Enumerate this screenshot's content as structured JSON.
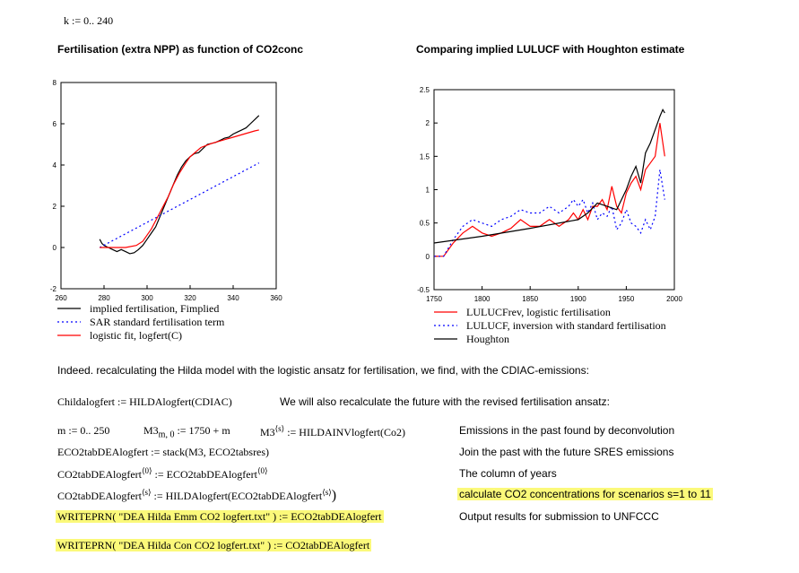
{
  "range_def": "k := 0.. 240",
  "chart_data": [
    {
      "type": "line",
      "title": "Fertilisation (extra NPP) as function of CO2conc",
      "xlim": [
        260,
        360
      ],
      "ylim": [
        -2,
        8
      ],
      "x_ticks": [
        "260",
        "280",
        "300",
        "320",
        "340",
        "360"
      ],
      "y_ticks": [
        "-2",
        "0",
        "2",
        "4",
        "6",
        "8"
      ],
      "grid": false,
      "legend_position": "bottom",
      "series": [
        {
          "name": "implied fertilisation, Fimplied",
          "color": "#000000",
          "style": "solid",
          "x": [
            278,
            279,
            280,
            282,
            284,
            286,
            288,
            290,
            292,
            294,
            296,
            298,
            300,
            302,
            304,
            306,
            308,
            310,
            312,
            314,
            316,
            318,
            320,
            322,
            324,
            326,
            328,
            330,
            332,
            334,
            336,
            338,
            340,
            342,
            344,
            346,
            348,
            350,
            352
          ],
          "y": [
            0.4,
            0.2,
            0.1,
            0.0,
            -0.1,
            -0.2,
            -0.1,
            -0.2,
            -0.3,
            -0.25,
            -0.1,
            0.1,
            0.4,
            0.7,
            1.0,
            1.5,
            2.0,
            2.5,
            3.0,
            3.5,
            3.9,
            4.2,
            4.4,
            4.55,
            4.6,
            4.8,
            5.0,
            5.05,
            5.1,
            5.2,
            5.3,
            5.35,
            5.5,
            5.6,
            5.7,
            5.8,
            6.0,
            6.2,
            6.4
          ]
        },
        {
          "name": "SAR standard fertilisation term",
          "color": "#0000ff",
          "style": "dotted",
          "x": [
            278,
            352
          ],
          "y": [
            0.0,
            4.1
          ]
        },
        {
          "name": "logistic fit, logfert(C)",
          "color": "#ff0000",
          "style": "solid",
          "x": [
            278,
            285,
            290,
            295,
            298,
            300,
            302,
            305,
            308,
            310,
            312,
            315,
            318,
            320,
            325,
            330,
            335,
            340,
            345,
            350,
            352
          ],
          "y": [
            0.0,
            0.0,
            0.0,
            0.1,
            0.3,
            0.6,
            0.9,
            1.5,
            2.1,
            2.5,
            3.0,
            3.6,
            4.1,
            4.4,
            4.85,
            5.05,
            5.2,
            5.35,
            5.5,
            5.65,
            5.7
          ]
        }
      ]
    },
    {
      "type": "line",
      "title": "Comparing implied LULUCF with Houghton estimate",
      "xlim": [
        1750,
        2000
      ],
      "ylim": [
        -0.5,
        2.5
      ],
      "x_ticks": [
        "1750",
        "1800",
        "1850",
        "1900",
        "1950",
        "2000"
      ],
      "y_ticks": [
        "-0.5",
        "0",
        "0.5",
        "1",
        "1.5",
        "2",
        "2.5"
      ],
      "grid": false,
      "legend_position": "bottom",
      "series": [
        {
          "name": "LULUCFrev, logistic fertilisation",
          "color": "#ff0000",
          "style": "solid",
          "x": [
            1750,
            1760,
            1770,
            1780,
            1790,
            1800,
            1810,
            1820,
            1830,
            1840,
            1850,
            1860,
            1870,
            1880,
            1890,
            1895,
            1900,
            1905,
            1910,
            1915,
            1920,
            1925,
            1930,
            1935,
            1940,
            1945,
            1950,
            1955,
            1960,
            1965,
            1970,
            1975,
            1980,
            1985,
            1990
          ],
          "y": [
            0.0,
            0.0,
            0.2,
            0.35,
            0.45,
            0.35,
            0.3,
            0.35,
            0.42,
            0.55,
            0.45,
            0.45,
            0.55,
            0.45,
            0.55,
            0.65,
            0.55,
            0.7,
            0.55,
            0.75,
            0.75,
            0.85,
            0.7,
            1.05,
            0.75,
            0.65,
            0.95,
            1.1,
            1.2,
            1.0,
            1.3,
            1.4,
            1.5,
            2.0,
            1.5
          ]
        },
        {
          "name": "LULUCF, inversion with standard fertilisation",
          "color": "#0000ff",
          "style": "dotted",
          "x": [
            1750,
            1760,
            1770,
            1780,
            1790,
            1800,
            1810,
            1820,
            1830,
            1840,
            1850,
            1860,
            1870,
            1880,
            1890,
            1895,
            1900,
            1905,
            1910,
            1915,
            1920,
            1925,
            1930,
            1935,
            1940,
            1945,
            1950,
            1955,
            1960,
            1965,
            1970,
            1975,
            1980,
            1985,
            1990
          ],
          "y": [
            0.0,
            0.0,
            0.25,
            0.45,
            0.55,
            0.5,
            0.45,
            0.55,
            0.6,
            0.7,
            0.65,
            0.65,
            0.75,
            0.65,
            0.75,
            0.85,
            0.75,
            0.85,
            0.65,
            0.8,
            0.55,
            0.65,
            0.6,
            0.75,
            0.4,
            0.5,
            0.7,
            0.5,
            0.45,
            0.35,
            0.55,
            0.4,
            0.6,
            1.3,
            0.85
          ]
        },
        {
          "name": "Houghton",
          "color": "#000000",
          "style": "solid",
          "x": [
            1750,
            1800,
            1850,
            1900,
            1910,
            1920,
            1930,
            1940,
            1950,
            1955,
            1960,
            1965,
            1970,
            1975,
            1980,
            1985,
            1988,
            1990
          ],
          "y": [
            0.2,
            0.3,
            0.42,
            0.55,
            0.65,
            0.8,
            0.75,
            0.7,
            1.0,
            1.2,
            1.35,
            1.1,
            1.55,
            1.7,
            1.9,
            2.1,
            2.2,
            2.15
          ]
        }
      ]
    }
  ],
  "text": {
    "paragraph": "Indeed. recalculating the Hilda model with the logistic ansatz for fertilisation, we find, with the CDIAC-emissions:",
    "childa": "Childalogfert := HILDAlogfert(CDIAC)",
    "future_note": "We will also recalculate the future with the revised fertilisation ansatz:",
    "m_def": "m := 0.. 250",
    "m3_lhs": "M3",
    "m3_sub": "m, 0",
    "m3_rhs": ":= 1750 + m",
    "m3s_lhs": "M3",
    "m3s_sup": "⟨s⟩",
    "m3s_rhs": ":= HILDAINVlogfert(Co2)",
    "eco2stack": "ECO2tabDEAlogfert := stack(M3, ECO2tabsres)",
    "co2tab0_lhs": "CO2tabDEAlogfert",
    "co2tab0_sup": "⟨0⟩",
    "co2tab0_rhs": ":= ECO2tabDEAlogfert",
    "co2tab0_rhs_sup": "⟨0⟩",
    "co2tabs_lhs": "CO2tabDEAlogfert",
    "co2tabs_sup": "⟨s⟩",
    "co2tabs_rhs": ":= HILDAlogfert(ECO2tabDEAlogfert",
    "co2tabs_rhs_sup": "⟨s⟩",
    "co2tabs_close": ")",
    "writeprn1": "WRITEPRN( \"DEA Hilda Emm CO2 logfert.txt\" ) := ECO2tabDEAlogfert",
    "writeprn2": "WRITEPRN( \"DEA Hilda Con CO2 logfert.txt\" ) := CO2tabDEAlogfert",
    "desc1": "Emissions in the past found by deconvolution",
    "desc2": "Join the past with the future SRES emissions",
    "desc3": "The column of years",
    "desc4": "calculate CO2 concentrations for scenarios s=1 to 11",
    "desc5": "Output results for submission to UNFCCC"
  },
  "colors": {
    "highlight": "#fbf97a",
    "red": "#ff0000",
    "blue": "#0000ff"
  }
}
